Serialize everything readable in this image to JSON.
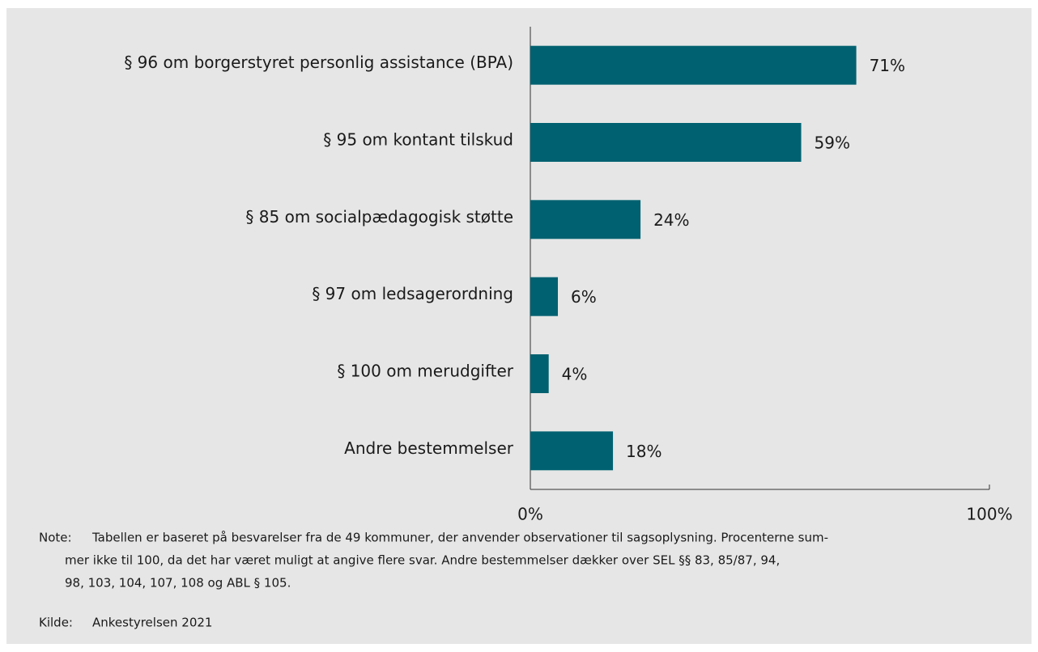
{
  "chart_data": {
    "type": "bar",
    "orientation": "horizontal",
    "categories": [
      "§ 96 om borgerstyret personlig assistance (BPA)",
      "§ 95 om kontant tilskud",
      "§ 85 om socialpædagogisk støtte",
      "§ 97 om ledsagerordning",
      "§ 100 om merudgifter",
      "Andre bestemmelser"
    ],
    "values": [
      71,
      59,
      24,
      6,
      4,
      18
    ],
    "value_labels": [
      "71%",
      "59%",
      "24%",
      "6%",
      "4%",
      "18%"
    ],
    "color": "#006170",
    "xlim": [
      0,
      100
    ],
    "xticks": [
      {
        "value": 0,
        "label": "0%"
      },
      {
        "value": 100,
        "label": "100%"
      }
    ],
    "grid": false
  },
  "note": {
    "label": "Note:",
    "lines": [
      "Tabellen er baseret på besvarelser fra de 49 kommuner, der anvender observationer til sagsoplysning. Procenterne sum-",
      "mer ikke til 100, da det har været muligt at angive flere svar. Andre bestemmelser dækker over SEL §§ 83, 85/87, 94,",
      "98, 103, 104, 107, 108 og ABL § 105."
    ]
  },
  "source": {
    "label": "Kilde:",
    "text": "Ankestyrelsen 2021"
  }
}
